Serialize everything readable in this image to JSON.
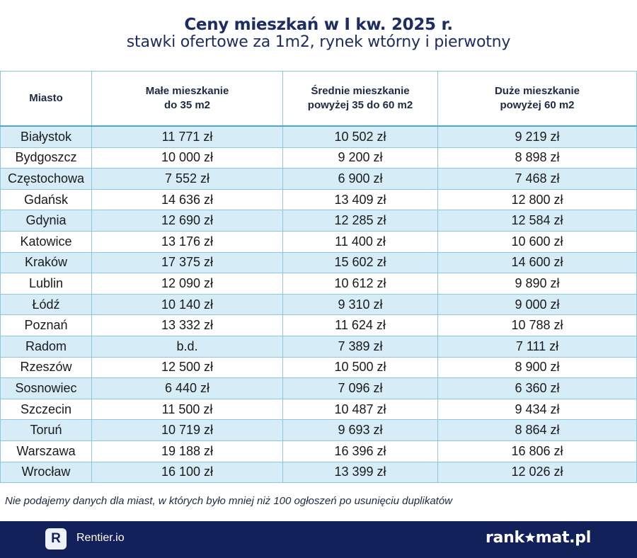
{
  "header": {
    "title": "Ceny mieszkań w I kw. 2025 r.",
    "subtitle": "stawki ofertowe za 1m2, rynek wtórny i pierwotny"
  },
  "chart_data": {
    "type": "table",
    "columns": [
      {
        "line1": "Miasto",
        "line2": ""
      },
      {
        "line1": "Małe mieszkanie",
        "line2": "do 35 m2"
      },
      {
        "line1": "Średnie mieszkanie",
        "line2": "powyżej 35 do 60 m2"
      },
      {
        "line1": "Duże mieszkanie",
        "line2": "powyżej 60 m2"
      }
    ],
    "rows": [
      [
        "Białystok",
        "11 771 zł",
        "10 502 zł",
        "9 219 zł"
      ],
      [
        "Bydgoszcz",
        "10 000 zł",
        "9 200 zł",
        "8 898 zł"
      ],
      [
        "Częstochowa",
        "7 552 zł",
        "6 900 zł",
        "7 468 zł"
      ],
      [
        "Gdańsk",
        "14 636 zł",
        "13 409 zł",
        "12 800 zł"
      ],
      [
        "Gdynia",
        "12 690 zł",
        "12 285 zł",
        "12 584 zł"
      ],
      [
        "Katowice",
        "13 176 zł",
        "11 400 zł",
        "10 600 zł"
      ],
      [
        "Kraków",
        "17 375 zł",
        "15 602 zł",
        "14 600 zł"
      ],
      [
        "Lublin",
        "12 090 zł",
        "10 612 zł",
        "9 890 zł"
      ],
      [
        "Łódź",
        "10 140 zł",
        "9 310 zł",
        "9 000 zł"
      ],
      [
        "Poznań",
        "13 332 zł",
        "11 624 zł",
        "10 788 zł"
      ],
      [
        "Radom",
        "b.d.",
        "7 389 zł",
        "7 111 zł"
      ],
      [
        "Rzeszów",
        "12 500 zł",
        "10 500 zł",
        "8 900 zł"
      ],
      [
        "Sosnowiec",
        "6 440 zł",
        "7 096 zł",
        "6 360 zł"
      ],
      [
        "Szczecin",
        "11 500 zł",
        "10 487 zł",
        "9 434 zł"
      ],
      [
        "Toruń",
        "10 719 zł",
        "9 693 zł",
        "8 864 zł"
      ],
      [
        "Warszawa",
        "19 188 zł",
        "16 396 zł",
        "16 806 zł"
      ],
      [
        "Wrocław",
        "16 100 zł",
        "13 399 zł",
        "12 026 zł"
      ]
    ]
  },
  "footnote": "Nie podajemy danych dla miast, w których było mniej niż 100 ogłoszeń po usunięciu duplikatów",
  "footer": {
    "rentier_logo_letter": "R",
    "rentier_name": "Rentier.io",
    "rankomat_prefix": "rank",
    "rankomat_suffix": "mat.pl",
    "rankomat_star_icon": "star-icon"
  },
  "colors": {
    "title": "#1d2d63",
    "header_border": "#4aa9d5",
    "cell_border": "#8fc6df",
    "row_stripe": "#d6edf7",
    "footer_bg": "#13215b"
  }
}
